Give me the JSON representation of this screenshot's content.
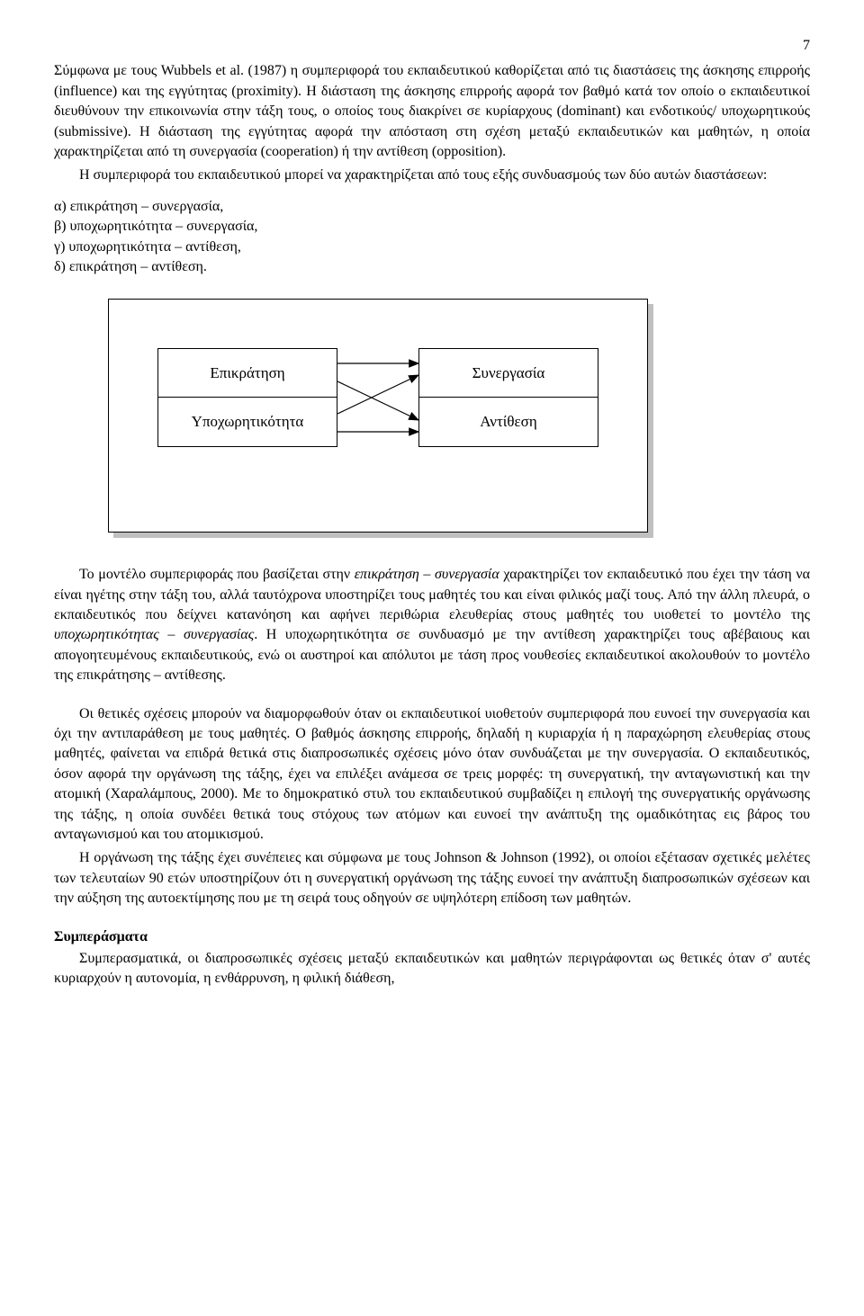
{
  "page_number": "7",
  "para1_pre": "  Σύμφωνα με τους Wubbels et al. (1987) η συμπεριφορά του εκπαιδευτικού καθορίζεται από τις διαστάσεις της άσκησης επιρροής (influence) και της εγγύτητας (proximity). Η διάσταση της άσκησης επιρροής αφορά τον βαθμό κατά τον οποίο ο εκπαιδευτικοί διευθύνουν την επικοινωνία στην τάξη τους, ο οποίος τους διακρίνει σε κυρίαρχους (dominant) και ενδοτικούς/ υποχωρητικούς (submissive). Η διάσταση της εγγύτητας αφορά την απόσταση στη σχέση μεταξύ εκπαιδευτικών και μαθητών, η οποία χαρακτηρίζεται από τη συνεργασία (cooperation) ή την αντίθεση (opposition).",
  "para2": "Η συμπεριφορά του εκπαιδευτικού μπορεί να χαρακτηρίζεται από τους εξής συνδυασμούς των δύο αυτών διαστάσεων:",
  "list": {
    "a": "α) επικράτηση – συνεργασία,",
    "b": "β) υποχωρητικότητα – συνεργασία,",
    "c": "γ) υποχωρητικότητα – αντίθεση,",
    "d": "δ) επικράτηση – αντίθεση."
  },
  "diagram": {
    "tl": "Επικράτηση",
    "bl": "Υποχωρητικότητα",
    "tr": "Συνεργασία",
    "br": "Αντίθεση",
    "stroke": "#000000",
    "fill": "#000000"
  },
  "para3_html": "Το μοντέλο συμπεριφοράς που βασίζεται στην <em>επικράτηση – συνεργασία</em> χαρακτηρίζει τον εκπαιδευτικό που έχει την τάση να είναι ηγέτης στην τάξη του, αλλά ταυτόχρονα υποστηρίζει τους μαθητές του και είναι φιλικός μαζί τους. Από την άλλη πλευρά, ο εκπαιδευτικός που δείχνει κατανόηση και αφήνει περιθώρια ελευθερίας στους μαθητές του υιοθετεί το μοντέλο της <em>υποχωρητικότητας – συνεργασίας</em>. Η υποχωρητικότητα σε συνδυασμό με την αντίθεση χαρακτηρίζει τους αβέβαιους και απογοητευμένους εκπαιδευτικούς, ενώ οι αυστηροί και απόλυτοι με τάση προς νουθεσίες εκπαιδευτικοί ακολουθούν το μοντέλο της επικράτησης – αντίθεσης.",
  "para4": "Οι θετικές σχέσεις μπορούν να διαμορφωθούν όταν οι εκπαιδευτικοί υιοθετούν συμπεριφορά που ευνοεί την συνεργασία και όχι την αντιπαράθεση με τους μαθητές. Ο βαθμός άσκησης επιρροής, δηλαδή η κυριαρχία ή η παραχώρηση ελευθερίας στους μαθητές, φαίνεται να επιδρά θετικά στις διαπροσωπικές σχέσεις μόνο όταν συνδυάζεται με την συνεργασία. Ο εκπαιδευτικός, όσον αφορά την οργάνωση της τάξης, έχει να επιλέξει ανάμεσα σε τρεις μορφές: τη συνεργατική, την ανταγωνιστική και την ατομική (Χαραλάμπους, 2000). Με το δημοκρατικό στυλ του εκπαιδευτικού συμβαδίζει η επιλογή της συνεργατικής οργάνωσης της τάξης, η οποία συνδέει θετικά τους στόχους των ατόμων και ευνοεί την ανάπτυξη της ομαδικότητας εις βάρος του ανταγωνισμού και του ατομικισμoύ.",
  "para5": "Η οργάνωση της τάξης έχει συνέπειες και σύμφωνα με τους Johnson & Johnson (1992), οι οποίοι εξέτασαν  σχετικές μελέτες των τελευταίων 90 ετών υποστηρίζουν ότι η συνεργατική οργάνωση της τάξης ευνοεί την ανάπτυξη διαπροσωπικών σχέσεων και την αύξηση της αυτοεκτίμησης που με τη σειρά τους οδηγούν σε  υψηλότερη επίδοση των μαθητών.",
  "conclusion_heading": "Συμπεράσματα",
  "para6": "Συμπερασματικά, οι διαπροσωπικές σχέσεις μεταξύ εκπαιδευτικών και μαθητών περιγράφονται ως θετικές όταν σ' αυτές κυριαρχούν η αυτονομία, η ενθάρρυνση, η φιλική διάθεση,"
}
